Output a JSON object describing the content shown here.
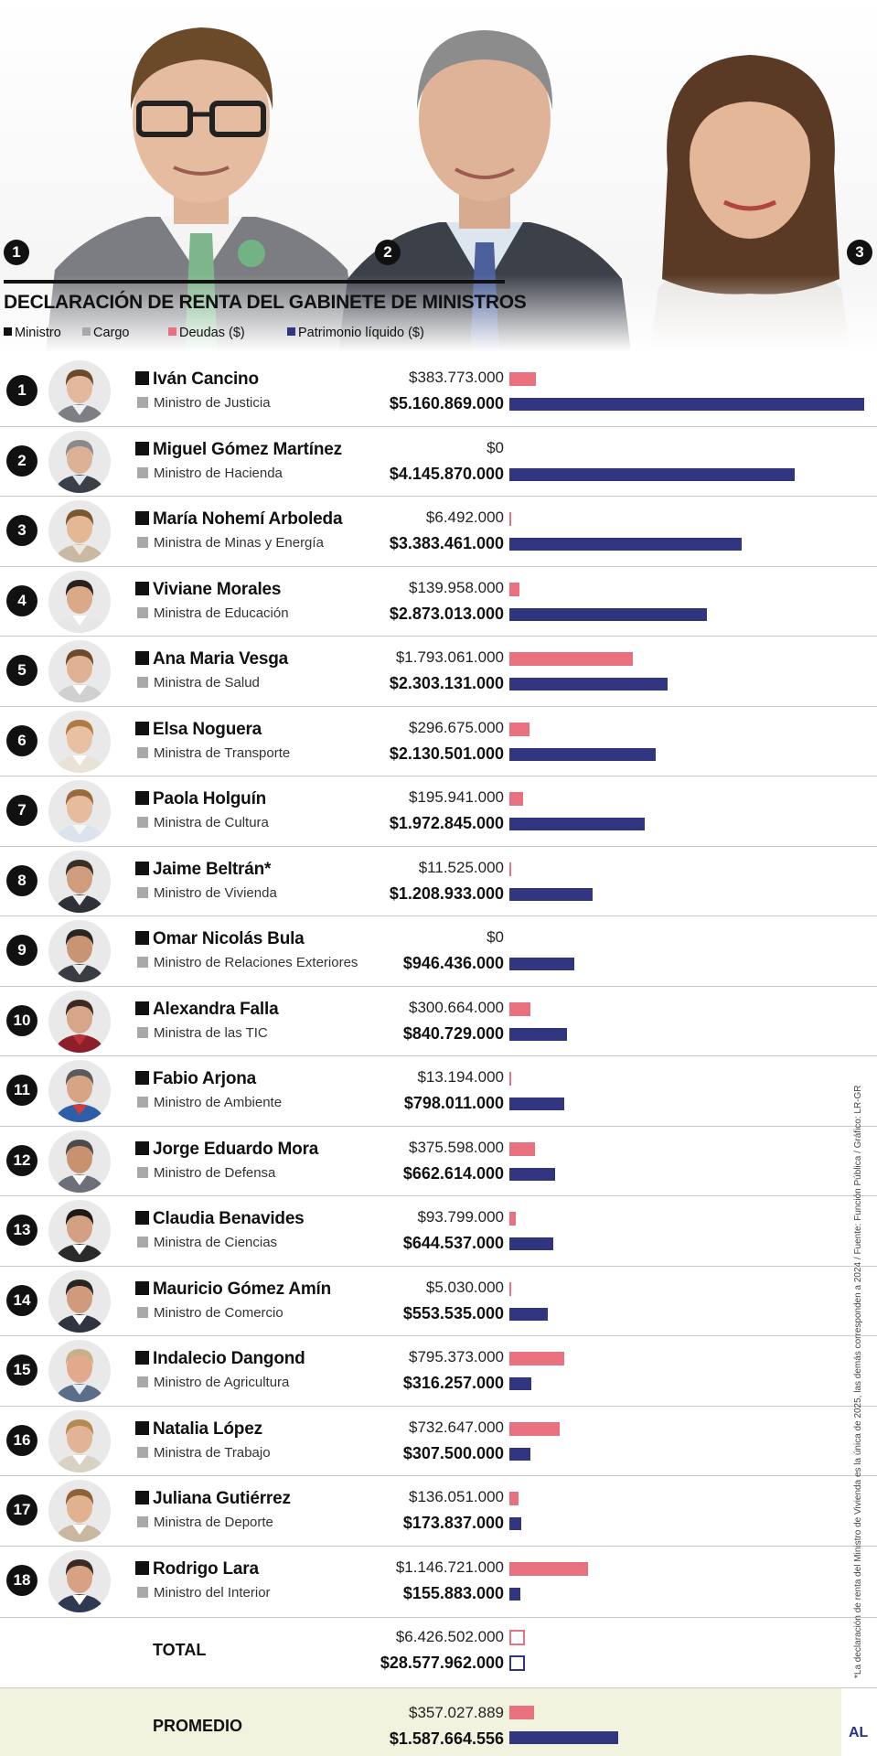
{
  "title": "DECLARACIÓN DE RENTA DEL GABINETE DE MINISTROS",
  "hero_numbers": [
    "1",
    "2",
    "3"
  ],
  "legend": {
    "ministro": "Ministro",
    "cargo": "Cargo",
    "deudas": "Deudas ($)",
    "patrimonio": "Patrimonio líquido ($)"
  },
  "colors": {
    "deudas": "#e8707f",
    "patrimonio": "#313580",
    "ministro": "#111111",
    "cargo": "#a8a8a8",
    "promedio_bg": "#f2f3de",
    "brand": "#2a3286"
  },
  "ministers": [
    {
      "rank": "1",
      "name": "Iván Cancino",
      "cargo": "Ministro de Justicia",
      "deudas_label": "$383.773.000",
      "patrimonio_label": "$5.160.869.000",
      "avatar": {
        "skin": "#e3b89c",
        "hair": "#6b4a2a",
        "shirt": "#eef0f3",
        "jacket": "#7d7f85"
      }
    },
    {
      "rank": "2",
      "name": "Miguel Gómez Martínez",
      "cargo": "Ministro de Hacienda",
      "deudas_label": "$0",
      "patrimonio_label": "$4.145.870.000",
      "avatar": {
        "skin": "#dcb196",
        "hair": "#8a8a8a",
        "shirt": "#dfe6ee",
        "jacket": "#3b3f48"
      }
    },
    {
      "rank": "3",
      "name": "María Nohemí Arboleda",
      "cargo": "Ministra de Minas y Energía",
      "deudas_label": "$6.492.000",
      "patrimonio_label": "$3.383.461.000",
      "avatar": {
        "skin": "#e4b895",
        "hair": "#7a5631",
        "shirt": "#efe7dc",
        "jacket": "#c9b9a3"
      }
    },
    {
      "rank": "4",
      "name": "Viviane Morales",
      "cargo": "Ministra de Educación",
      "deudas_label": "$139.958.000",
      "patrimonio_label": "$2.873.013.000",
      "avatar": {
        "skin": "#d9a98a",
        "hair": "#2b211c",
        "shirt": "#ffffff",
        "jacket": "#e6e6e6"
      }
    },
    {
      "rank": "5",
      "name": "Ana Maria Vesga",
      "cargo": "Ministra de Salud",
      "deudas_label": "$1.793.061.000",
      "patrimonio_label": "$2.303.131.000",
      "avatar": {
        "skin": "#e0b293",
        "hair": "#6d4a2b",
        "shirt": "#ffffff",
        "jacket": "#d0d0d0"
      }
    },
    {
      "rank": "6",
      "name": "Elsa Noguera",
      "cargo": "Ministra de Transporte",
      "deudas_label": "$296.675.000",
      "patrimonio_label": "$2.130.501.000",
      "avatar": {
        "skin": "#e8c0a2",
        "hair": "#b07a42",
        "shirt": "#ffffff",
        "jacket": "#e9e2d6"
      }
    },
    {
      "rank": "7",
      "name": "Paola Holguín",
      "cargo": "Ministra de Cultura",
      "deudas_label": "$195.941.000",
      "patrimonio_label": "$1.972.845.000",
      "avatar": {
        "skin": "#e6bc9c",
        "hair": "#9a6a3b",
        "shirt": "#f5f5f5",
        "jacket": "#dbe4ec"
      }
    },
    {
      "rank": "8",
      "name": "Jaime Beltrán*",
      "cargo": "Ministro de Vivienda",
      "deudas_label": "$11.525.000",
      "patrimonio_label": "$1.208.933.000",
      "avatar": {
        "skin": "#cf9c7e",
        "hair": "#3a2e28",
        "shirt": "#f1f1f1",
        "jacket": "#2f3138"
      }
    },
    {
      "rank": "9",
      "name": "Omar Nicolás Bula",
      "cargo": "Ministro de Relaciones Exteriores",
      "deudas_label": "$0",
      "patrimonio_label": "$946.436.000",
      "avatar": {
        "skin": "#c99474",
        "hair": "#2a2420",
        "shirt": "#e9e9e9",
        "jacket": "#3a3c44"
      }
    },
    {
      "rank": "10",
      "name": "Alexandra Falla",
      "cargo": "Ministra de las TIC",
      "deudas_label": "$300.664.000",
      "patrimonio_label": "$840.729.000",
      "avatar": {
        "skin": "#d7a587",
        "hair": "#3a2a22",
        "shirt": "#b8323a",
        "jacket": "#8c1f2a"
      }
    },
    {
      "rank": "11",
      "name": "Fabio Arjona",
      "cargo": "Ministro de Ambiente",
      "deudas_label": "$13.194.000",
      "patrimonio_label": "$798.011.000",
      "avatar": {
        "skin": "#d8a486",
        "hair": "#5a5a5a",
        "shirt": "#d33b3b",
        "jacket": "#2e5ea8"
      }
    },
    {
      "rank": "12",
      "name": "Jorge Eduardo Mora",
      "cargo": "Ministro de Defensa",
      "deudas_label": "$375.598.000",
      "patrimonio_label": "$662.614.000",
      "avatar": {
        "skin": "#c8916f",
        "hair": "#4b4b4b",
        "shirt": "#ffffff",
        "jacket": "#6d7078"
      }
    },
    {
      "rank": "13",
      "name": "Claudia Benavides",
      "cargo": "Ministra de Ciencias",
      "deudas_label": "$93.799.000",
      "patrimonio_label": "$644.537.000",
      "avatar": {
        "skin": "#d4a083",
        "hair": "#1f1a18",
        "shirt": "#ffffff",
        "jacket": "#2a2a2a"
      }
    },
    {
      "rank": "14",
      "name": "Mauricio Gómez Amín",
      "cargo": "Ministro de Comercio",
      "deudas_label": "$5.030.000",
      "patrimonio_label": "$553.535.000",
      "avatar": {
        "skin": "#d09b7c",
        "hair": "#2a2420",
        "shirt": "#ffffff",
        "jacket": "#2f3440"
      }
    },
    {
      "rank": "15",
      "name": "Indalecio Dangond",
      "cargo": "Ministro de Agricultura",
      "deudas_label": "$795.373.000",
      "patrimonio_label": "$316.257.000",
      "avatar": {
        "skin": "#e2a98c",
        "hair": "#c9b08d",
        "shirt": "#e6ecf3",
        "jacket": "#5a6e8a"
      }
    },
    {
      "rank": "16",
      "name": "Natalia López",
      "cargo": "Ministra de Trabajo",
      "deudas_label": "$732.647.000",
      "patrimonio_label": "$307.500.000",
      "avatar": {
        "skin": "#e2b395",
        "hair": "#b58a52",
        "shirt": "#ffffff",
        "jacket": "#d9d2c4"
      }
    },
    {
      "rank": "17",
      "name": "Juliana Gutiérrez",
      "cargo": "Ministra de Deporte",
      "deudas_label": "$136.051.000",
      "patrimonio_label": "$173.837.000",
      "avatar": {
        "skin": "#e2b190",
        "hair": "#8d6238",
        "shirt": "#ffffff",
        "jacket": "#c8b8a2"
      }
    },
    {
      "rank": "18",
      "name": "Rodrigo Lara",
      "cargo": "Ministro del Interior",
      "deudas_label": "$1.146.721.000",
      "patrimonio_label": "$155.883.000",
      "avatar": {
        "skin": "#d7a283",
        "hair": "#3a2a22",
        "shirt": "#ffffff",
        "jacket": "#2f3a52"
      }
    }
  ],
  "total": {
    "label": "TOTAL",
    "deudas_label": "$6.426.502.000",
    "patrimonio_label": "$28.577.962.000"
  },
  "promedio": {
    "label": "PROMEDIO",
    "deudas_label": "$357.027.889",
    "patrimonio_label": "$1.587.664.556"
  },
  "footnote": "*La declaración de renta del Ministro de Vivienda es la única de 2025, las demás corresponden a 2024 / Fuente: Función Pública / Gráfico: LR-GR",
  "brand": "AL",
  "chart_data": {
    "type": "bar",
    "title": "DECLARACIÓN DE RENTA DEL GABINETE DE MINISTROS",
    "categories": [
      "Iván Cancino",
      "Miguel Gómez Martínez",
      "María Nohemí Arboleda",
      "Viviane Morales",
      "Ana Maria Vesga",
      "Elsa Noguera",
      "Paola Holguín",
      "Jaime Beltrán*",
      "Omar Nicolás Bula",
      "Alexandra Falla",
      "Fabio Arjona",
      "Jorge Eduardo Mora",
      "Claudia Benavides",
      "Mauricio Gómez Amín",
      "Indalecio Dangond",
      "Natalia López",
      "Juliana Gutiérrez",
      "Rodrigo Lara"
    ],
    "series": [
      {
        "name": "Deudas ($)",
        "values": [
          383773000,
          0,
          6492000,
          139958000,
          1793061000,
          296675000,
          195941000,
          11525000,
          0,
          300664000,
          13194000,
          375598000,
          93799000,
          5030000,
          795373000,
          732647000,
          136051000,
          1146721000
        ]
      },
      {
        "name": "Patrimonio líquido ($)",
        "values": [
          5160869000,
          4145870000,
          3383461000,
          2873013000,
          2303131000,
          2130501000,
          1972845000,
          1208933000,
          946436000,
          840729000,
          798011000,
          662614000,
          644537000,
          553535000,
          316257000,
          307500000,
          173837000,
          155883000
        ]
      }
    ],
    "total": {
      "deudas": 6426502000,
      "patrimonio": 28577962000
    },
    "promedio": {
      "deudas": 357027889,
      "patrimonio": 1587664556
    },
    "legend_placement": "top-left",
    "grid": false
  }
}
